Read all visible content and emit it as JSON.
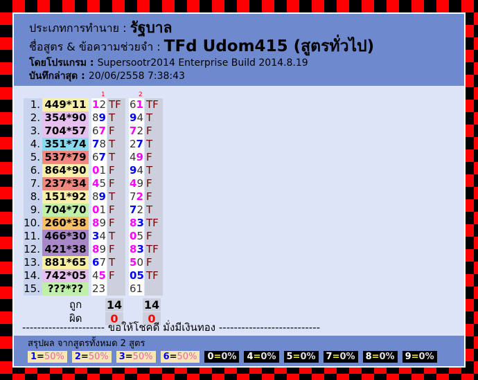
{
  "header": {
    "type_label": "ประเภทการทำนาย :",
    "type_value": "รัฐบาล",
    "formula_label": "ชื่อสูตร & ข้อความช่วยจำ :",
    "formula_value": "TFd Udom415 (สูตรทั่วไป)",
    "program_label": "โดยโปรแกรม :",
    "program_value": "Supersootr2014 Enterprise Build 2014.8.19",
    "saved_label": "บันทึกล่าสุด :",
    "saved_value": "20/06/2558 7:38:43"
  },
  "columns": [
    "1",
    "2"
  ],
  "colors": {
    "yellow": "#f8f0a8",
    "pink": "#e8c0f0",
    "cyan": "#88d8f0",
    "salmon": "#f08880",
    "green": "#c0f0a8",
    "orange": "#f8c060",
    "purple": "#a888c8",
    "magenta": "#ff00ff",
    "blue": "#0000ff"
  },
  "rows": [
    {
      "idx": "1.",
      "num": "449*11",
      "bg": "yellow",
      "c1": [
        [
          "1",
          "m"
        ],
        [
          "2",
          "n"
        ]
      ],
      "r1": "TF",
      "c2": [
        [
          "6",
          "n"
        ],
        [
          "1",
          "m"
        ]
      ],
      "r2": "TF"
    },
    {
      "idx": "2.",
      "num": "354*90",
      "bg": "pink",
      "c1": [
        [
          "8",
          "n"
        ],
        [
          "9",
          "b"
        ]
      ],
      "r1": "T",
      "c2": [
        [
          "9",
          "b"
        ],
        [
          "4",
          "n"
        ]
      ],
      "r2": "T"
    },
    {
      "idx": "3.",
      "num": "704*57",
      "bg": "pink",
      "c1": [
        [
          "6",
          "n"
        ],
        [
          "7",
          "m"
        ]
      ],
      "r1": "F",
      "c2": [
        [
          "7",
          "m"
        ],
        [
          "2",
          "n"
        ]
      ],
      "r2": "F"
    },
    {
      "idx": "4.",
      "num": "351*74",
      "bg": "cyan",
      "c1": [
        [
          "7",
          "b"
        ],
        [
          "8",
          "n"
        ]
      ],
      "r1": "T",
      "c2": [
        [
          "2",
          "n"
        ],
        [
          "7",
          "b"
        ]
      ],
      "r2": "T"
    },
    {
      "idx": "5.",
      "num": "537*79",
      "bg": "salmon",
      "c1": [
        [
          "6",
          "n"
        ],
        [
          "7",
          "b"
        ]
      ],
      "r1": "T",
      "c2": [
        [
          "4",
          "n"
        ],
        [
          "9",
          "m"
        ]
      ],
      "r2": "F"
    },
    {
      "idx": "6.",
      "num": "864*90",
      "bg": "yellow",
      "c1": [
        [
          "0",
          "m"
        ],
        [
          "1",
          "n"
        ]
      ],
      "r1": "F",
      "c2": [
        [
          "9",
          "b"
        ],
        [
          "4",
          "n"
        ]
      ],
      "r2": "T"
    },
    {
      "idx": "7.",
      "num": "237*34",
      "bg": "salmon",
      "c1": [
        [
          "4",
          "m"
        ],
        [
          "5",
          "n"
        ]
      ],
      "r1": "F",
      "c2": [
        [
          "4",
          "m"
        ],
        [
          "9",
          "n"
        ]
      ],
      "r2": "F"
    },
    {
      "idx": "8.",
      "num": "151*92",
      "bg": "yellow",
      "c1": [
        [
          "8",
          "n"
        ],
        [
          "9",
          "b"
        ]
      ],
      "r1": "T",
      "c2": [
        [
          "7",
          "n"
        ],
        [
          "2",
          "m"
        ]
      ],
      "r2": "F"
    },
    {
      "idx": "9.",
      "num": "704*70",
      "bg": "green",
      "c1": [
        [
          "0",
          "m"
        ],
        [
          "1",
          "n"
        ]
      ],
      "r1": "F",
      "c2": [
        [
          "7",
          "b"
        ],
        [
          "2",
          "n"
        ]
      ],
      "r2": "T"
    },
    {
      "idx": "10.",
      "num": "260*38",
      "bg": "orange",
      "c1": [
        [
          "8",
          "m"
        ],
        [
          "9",
          "n"
        ]
      ],
      "r1": "F",
      "c2": [
        [
          "8",
          "m"
        ],
        [
          "3",
          "b"
        ]
      ],
      "r2": "TF"
    },
    {
      "idx": "11.",
      "num": "466*30",
      "bg": "purple",
      "c1": [
        [
          "3",
          "b"
        ],
        [
          "4",
          "n"
        ]
      ],
      "r1": "T",
      "c2": [
        [
          "0",
          "m"
        ],
        [
          "5",
          "n"
        ]
      ],
      "r2": "F"
    },
    {
      "idx": "12.",
      "num": "421*38",
      "bg": "purple",
      "c1": [
        [
          "8",
          "m"
        ],
        [
          "9",
          "n"
        ]
      ],
      "r1": "F",
      "c2": [
        [
          "8",
          "m"
        ],
        [
          "3",
          "b"
        ]
      ],
      "r2": "TF"
    },
    {
      "idx": "13.",
      "num": "881*65",
      "bg": "yellow",
      "c1": [
        [
          "6",
          "b"
        ],
        [
          "7",
          "n"
        ]
      ],
      "r1": "T",
      "c2": [
        [
          "5",
          "m"
        ],
        [
          "0",
          "n"
        ]
      ],
      "r2": "F"
    },
    {
      "idx": "14.",
      "num": "742*05",
      "bg": "pink",
      "c1": [
        [
          "4",
          "n"
        ],
        [
          "5",
          "m"
        ]
      ],
      "r1": "F",
      "c2": [
        [
          "0",
          "b"
        ],
        [
          "5",
          "b"
        ]
      ],
      "r2": "TF"
    },
    {
      "idx": "15.",
      "num": "???*??",
      "bg": "green",
      "c1": [
        [
          "2",
          "n"
        ],
        [
          "3",
          "n"
        ]
      ],
      "r1": "",
      "c2": [
        [
          "6",
          "n"
        ],
        [
          "1",
          "n"
        ]
      ],
      "r2": ""
    }
  ],
  "summary": {
    "correct_label": "ถูก",
    "wrong_label": "ผิด",
    "correct": [
      "14",
      "14"
    ],
    "wrong": [
      "0",
      "0"
    ]
  },
  "divider": "---------------------- ขอให้โชคดี มั่งมีเงินทอง ---------------------------",
  "footer": {
    "title": "สรุปผล จากสูตรทั้งหมด 2 สูตร",
    "chips": [
      {
        "d": "1",
        "pc": "50%",
        "style": "y"
      },
      {
        "d": "2",
        "pc": "50%",
        "style": "y"
      },
      {
        "d": "3",
        "pc": "50%",
        "style": "y"
      },
      {
        "d": "6",
        "pc": "50%",
        "style": "y"
      },
      {
        "d": "0",
        "pc": "0%",
        "style": "k"
      },
      {
        "d": "4",
        "pc": "0%",
        "style": "k"
      },
      {
        "d": "5",
        "pc": "0%",
        "style": "k"
      },
      {
        "d": "7",
        "pc": "0%",
        "style": "k"
      },
      {
        "d": "8",
        "pc": "0%",
        "style": "k"
      },
      {
        "d": "9",
        "pc": "0%",
        "style": "k"
      }
    ]
  }
}
